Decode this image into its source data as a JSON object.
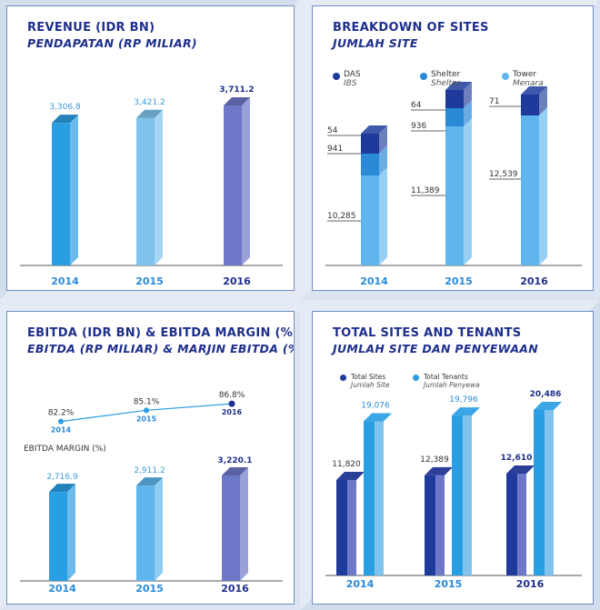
{
  "revenue": {
    "title": "REVENUE (IDR BN)",
    "subtitle": "PENDAPATAN (RP MILIAR)",
    "chart_data": {
      "type": "bar",
      "categories": [
        "2014",
        "2015",
        "2016"
      ],
      "values": [
        3306.8,
        3421.2,
        3711.2
      ],
      "value_labels": [
        "3,306.8",
        "3,421.2",
        "3,711.2"
      ],
      "colors": [
        "#2a9ee2",
        "#7fc3ec",
        "#6e78c8"
      ]
    }
  },
  "sites": {
    "title": "BREAKDOWN OF SITES",
    "subtitle": "JUMLAH SITE",
    "legend": [
      {
        "label": "DAS",
        "sublabel": "IBS",
        "color": "#1e3a9a"
      },
      {
        "label": "Shelter",
        "sublabel": "Shelter",
        "color": "#2a8ad8"
      },
      {
        "label": "Tower",
        "sublabel": "Menara",
        "color": "#5fb6ec"
      }
    ],
    "chart_data": {
      "type": "stacked-bar",
      "categories": [
        "2014",
        "2015",
        "2016"
      ],
      "series": [
        {
          "name": "Tower",
          "values": [
            10285,
            11389,
            12539
          ],
          "labels": [
            "10,285",
            "11,389",
            "12,539"
          ]
        },
        {
          "name": "Shelter",
          "values": [
            941,
            936,
            null
          ],
          "labels": [
            "941",
            "936",
            ""
          ]
        },
        {
          "name": "DAS",
          "values": [
            54,
            64,
            71
          ],
          "labels": [
            "54",
            "64",
            "71"
          ]
        }
      ]
    }
  },
  "ebitda": {
    "title": "EBITDA (IDR BN) & EBITDA MARGIN (%)",
    "subtitle": "EBITDA (RP MILIAR) & MARJIN EBITDA (%)",
    "margin_label": "EBITDA MARGIN (%)",
    "chart_data": {
      "type": "bar+line",
      "categories": [
        "2014",
        "2015",
        "2016"
      ],
      "values": [
        2716.9,
        2911.2,
        3220.1
      ],
      "value_labels": [
        "2,716.9",
        "2,911.2",
        "3,220.1"
      ],
      "margin": [
        82.2,
        85.1,
        86.8
      ],
      "margin_labels": [
        "82.2%",
        "85.1%",
        "86.8%"
      ],
      "colors": [
        "#2a9ee2",
        "#5fb6ec",
        "#6e78c8"
      ]
    }
  },
  "tenants": {
    "title": "TOTAL SITES AND TENANTS",
    "subtitle": "JUMLAH SITE DAN PENYEWAAN",
    "legend": [
      {
        "label": "Total Sites",
        "sublabel": "Jumlah Site",
        "color": "#1e3a9a"
      },
      {
        "label": "Total Tenants",
        "sublabel": "Jumlah Penyewa",
        "color": "#2a9ee2"
      }
    ],
    "chart_data": {
      "type": "bar",
      "categories": [
        "2014",
        "2015",
        "2016"
      ],
      "series": [
        {
          "name": "Total Sites",
          "values": [
            11820,
            12389,
            12610
          ],
          "labels": [
            "11,820",
            "12,389",
            "12,610"
          ]
        },
        {
          "name": "Total Tenants",
          "values": [
            19076,
            19796,
            20486
          ],
          "labels": [
            "19,076",
            "19,796",
            "20,486"
          ]
        }
      ]
    }
  }
}
